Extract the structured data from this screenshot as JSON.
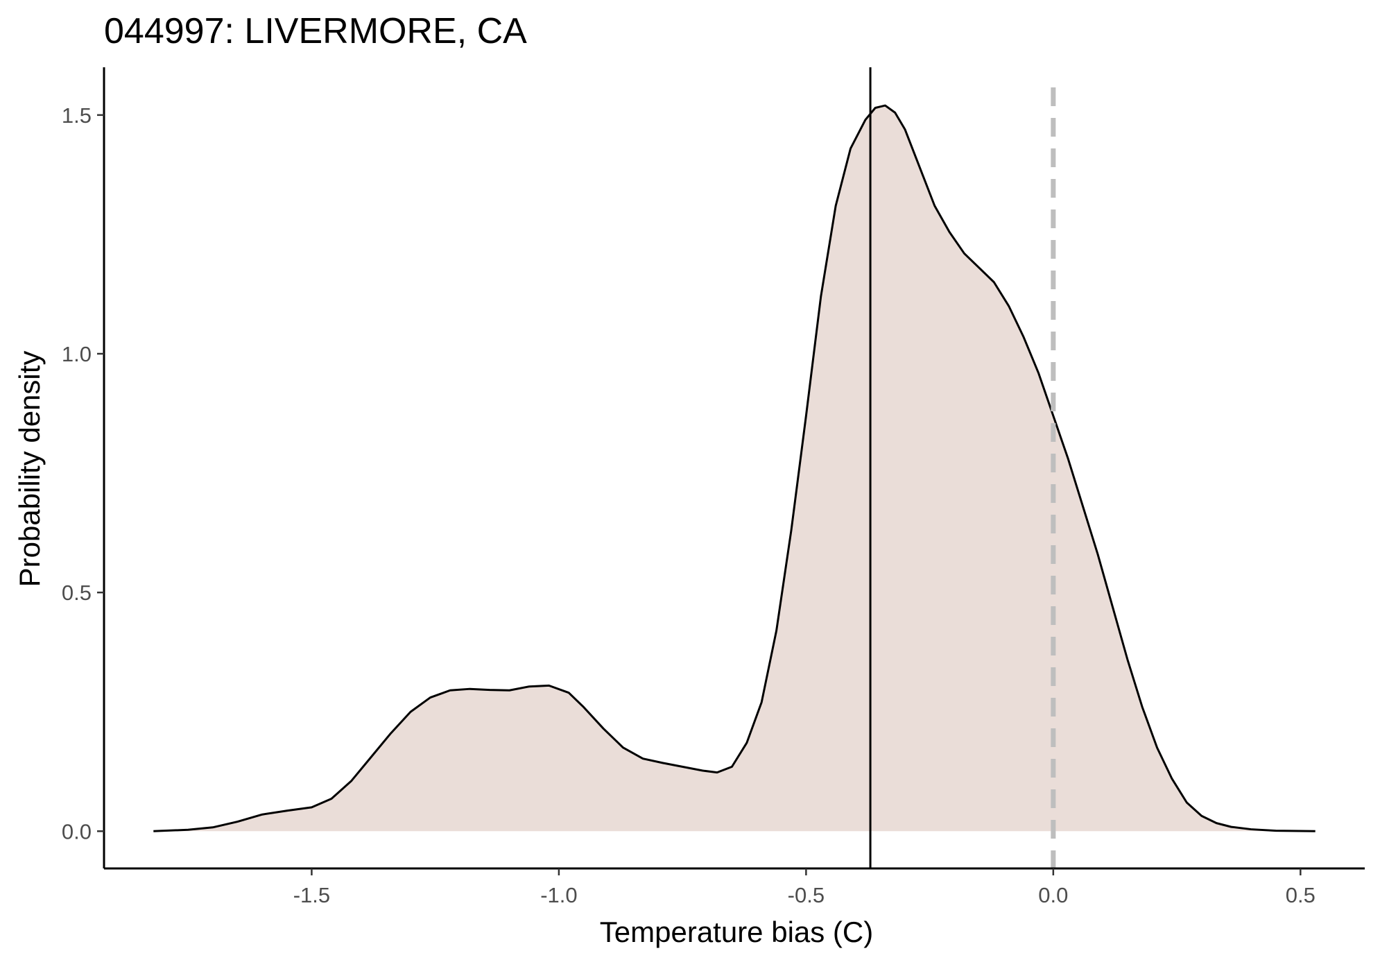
{
  "chart_data": {
    "type": "area",
    "title": "044997: LIVERMORE, CA",
    "xlabel": "Temperature bias (C)",
    "ylabel": "Probability density",
    "xlim": [
      -1.92,
      0.63
    ],
    "ylim": [
      -0.078,
      1.6
    ],
    "xticks": [
      -1.5,
      -1.0,
      -0.5,
      0.0,
      0.5
    ],
    "xtick_labels": [
      "-1.5",
      "-1.0",
      "-0.5",
      "0.0",
      "0.5"
    ],
    "yticks": [
      0.0,
      0.5,
      1.0,
      1.5
    ],
    "ytick_labels": [
      "0.0",
      "0.5",
      "1.0",
      "1.5"
    ],
    "grid": false,
    "legend": "none",
    "series": [
      {
        "name": "density",
        "fill": "#eaddd8",
        "stroke": "#000000",
        "points": [
          [
            -1.82,
            0.0
          ],
          [
            -1.75,
            0.003
          ],
          [
            -1.7,
            0.008
          ],
          [
            -1.65,
            0.02
          ],
          [
            -1.6,
            0.035
          ],
          [
            -1.55,
            0.043
          ],
          [
            -1.5,
            0.05
          ],
          [
            -1.46,
            0.068
          ],
          [
            -1.42,
            0.105
          ],
          [
            -1.38,
            0.155
          ],
          [
            -1.34,
            0.205
          ],
          [
            -1.3,
            0.25
          ],
          [
            -1.26,
            0.28
          ],
          [
            -1.22,
            0.295
          ],
          [
            -1.18,
            0.298
          ],
          [
            -1.14,
            0.296
          ],
          [
            -1.1,
            0.295
          ],
          [
            -1.06,
            0.303
          ],
          [
            -1.02,
            0.305
          ],
          [
            -0.98,
            0.29
          ],
          [
            -0.95,
            0.26
          ],
          [
            -0.91,
            0.215
          ],
          [
            -0.87,
            0.175
          ],
          [
            -0.83,
            0.152
          ],
          [
            -0.79,
            0.143
          ],
          [
            -0.75,
            0.135
          ],
          [
            -0.71,
            0.127
          ],
          [
            -0.68,
            0.123
          ],
          [
            -0.65,
            0.135
          ],
          [
            -0.62,
            0.185
          ],
          [
            -0.59,
            0.27
          ],
          [
            -0.56,
            0.42
          ],
          [
            -0.53,
            0.63
          ],
          [
            -0.5,
            0.87
          ],
          [
            -0.47,
            1.12
          ],
          [
            -0.44,
            1.31
          ],
          [
            -0.41,
            1.43
          ],
          [
            -0.38,
            1.49
          ],
          [
            -0.36,
            1.515
          ],
          [
            -0.34,
            1.52
          ],
          [
            -0.32,
            1.505
          ],
          [
            -0.3,
            1.47
          ],
          [
            -0.27,
            1.39
          ],
          [
            -0.24,
            1.31
          ],
          [
            -0.21,
            1.255
          ],
          [
            -0.18,
            1.21
          ],
          [
            -0.15,
            1.18
          ],
          [
            -0.12,
            1.15
          ],
          [
            -0.09,
            1.1
          ],
          [
            -0.06,
            1.035
          ],
          [
            -0.03,
            0.96
          ],
          [
            0.0,
            0.87
          ],
          [
            0.03,
            0.78
          ],
          [
            0.06,
            0.68
          ],
          [
            0.09,
            0.58
          ],
          [
            0.12,
            0.47
          ],
          [
            0.15,
            0.36
          ],
          [
            0.18,
            0.26
          ],
          [
            0.21,
            0.175
          ],
          [
            0.24,
            0.11
          ],
          [
            0.27,
            0.06
          ],
          [
            0.3,
            0.032
          ],
          [
            0.33,
            0.017
          ],
          [
            0.36,
            0.009
          ],
          [
            0.4,
            0.004
          ],
          [
            0.45,
            0.001
          ],
          [
            0.53,
            0.0
          ]
        ]
      }
    ],
    "reference_lines": [
      {
        "name": "mean-bias-line",
        "x": -0.37,
        "style": "solid",
        "color": "#000000"
      },
      {
        "name": "zero-bias-line",
        "x": 0.0,
        "style": "dashed",
        "color": "#bebebe"
      }
    ]
  }
}
